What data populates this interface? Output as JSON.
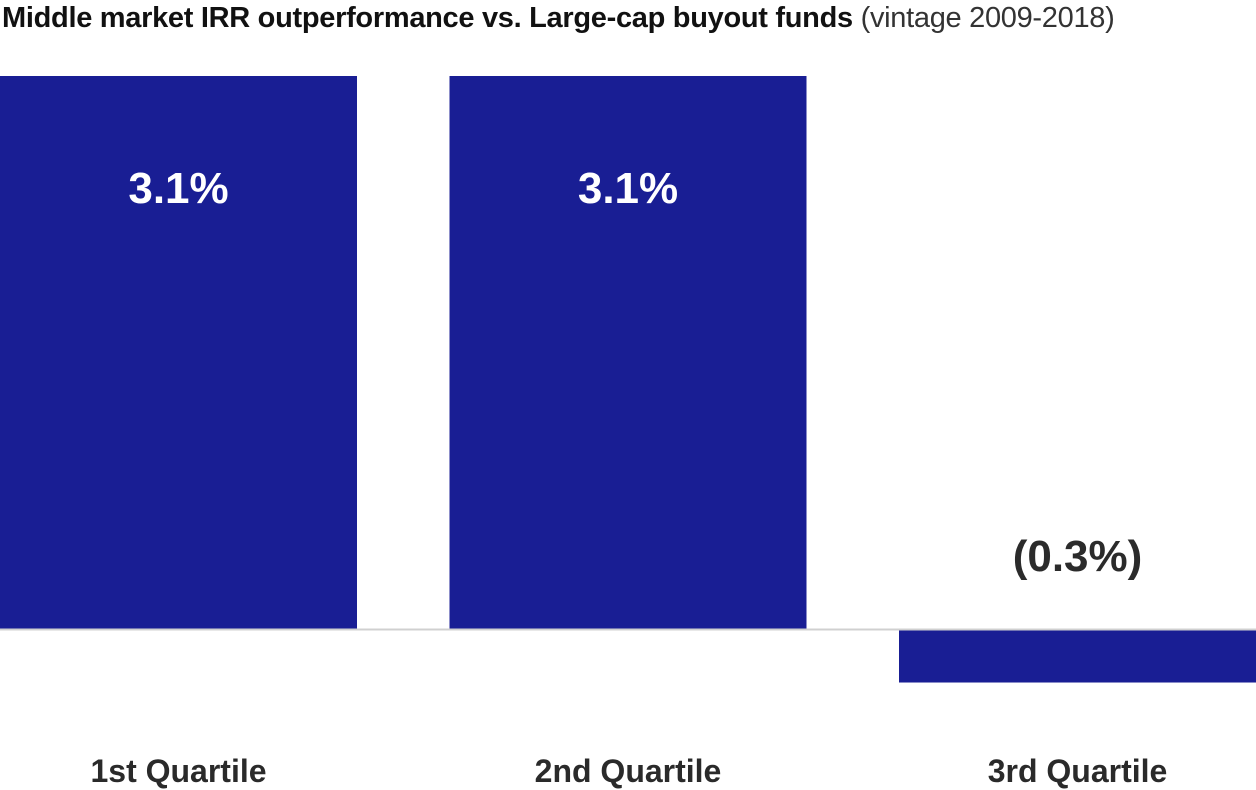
{
  "chart_data": {
    "type": "bar",
    "title": "Middle market IRR outperformance vs. Large-cap buyout funds",
    "subtitle": "(vintage 2009-2018)",
    "categories": [
      "1st Quartile",
      "2nd Quartile",
      "3rd Quartile"
    ],
    "values": [
      3.1,
      3.1,
      -0.3
    ],
    "value_labels": [
      "3.1%",
      "3.1%",
      "(0.3%)"
    ],
    "xlabel": "",
    "ylabel": "",
    "ylim": [
      -0.34,
      3.1
    ],
    "grid": false,
    "legend": "none",
    "colors": {
      "bar": "#191e94",
      "label_inside": "#ffffff",
      "label_outside": "#2b2b2b",
      "baseline": "#d0d0d0"
    }
  }
}
